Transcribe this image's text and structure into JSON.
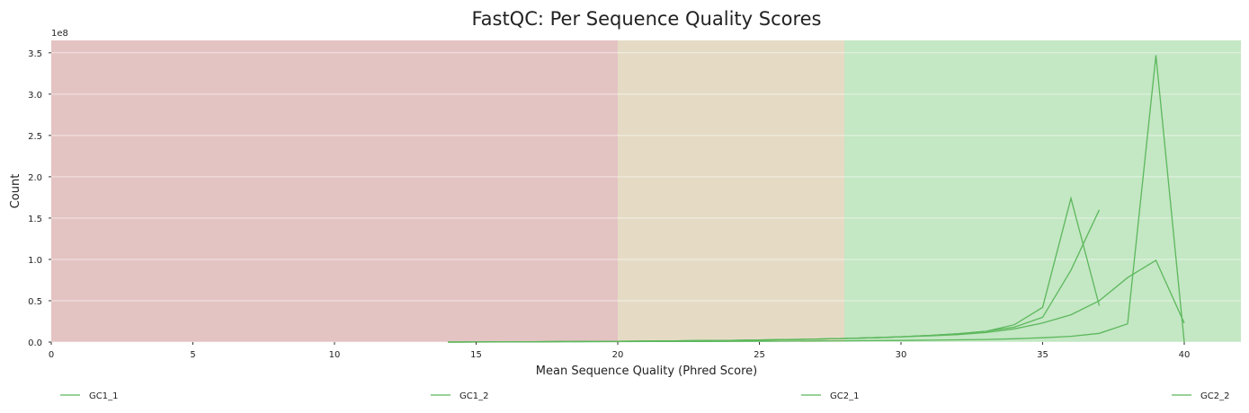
{
  "chart_data": {
    "type": "line",
    "title": "FastQC: Per Sequence Quality Scores",
    "xlabel": "Mean Sequence Quality (Phred Score)",
    "ylabel": "Count",
    "y_multiplier_label": "1e8",
    "xlim": [
      0,
      42
    ],
    "ylim": [
      0,
      365000000.0
    ],
    "x_ticks": [
      0,
      5,
      10,
      15,
      20,
      25,
      30,
      35,
      40
    ],
    "y_ticks": [
      0.0,
      0.5,
      1.0,
      1.5,
      2.0,
      2.5,
      3.0,
      3.5
    ],
    "grid": true,
    "legend_position": "bottom",
    "zones": [
      {
        "from": 0,
        "to": 20,
        "color": "#e4c3c3",
        "meaning": "poor"
      },
      {
        "from": 20,
        "to": 28,
        "color": "#e5dbc5",
        "meaning": "reasonable"
      },
      {
        "from": 28,
        "to": 42,
        "color": "#c4e7c4",
        "meaning": "good"
      }
    ],
    "line_color": "#5cb85c",
    "series": [
      {
        "name": "GC1_1",
        "x": [
          14,
          15,
          16,
          17,
          18,
          19,
          20,
          21,
          22,
          23,
          24,
          25,
          26,
          27,
          28,
          29,
          30,
          31,
          32,
          33,
          34,
          35,
          36,
          37
        ],
        "y": [
          0,
          100000,
          200000,
          400000,
          600000,
          800000,
          1000000,
          1200000,
          1500000,
          1800000,
          2100000,
          2500000,
          3000000,
          3600000,
          4300000,
          5200000,
          6400000,
          8000000,
          10000000,
          13000000,
          21000000,
          42000000,
          174000000,
          44000000
        ]
      },
      {
        "name": "GC1_2",
        "x": [
          14,
          15,
          16,
          17,
          18,
          19,
          20,
          21,
          22,
          23,
          24,
          25,
          26,
          27,
          28,
          29,
          30,
          31,
          32,
          33,
          34,
          35,
          36,
          37
        ],
        "y": [
          0,
          100000,
          200000,
          400000,
          600000,
          800000,
          1000000,
          1200000,
          1500000,
          1800000,
          2100000,
          2500000,
          3000000,
          3600000,
          4300000,
          5200000,
          6400000,
          8000000,
          10000000,
          13000000,
          18000000,
          30000000,
          87000000,
          160000000
        ]
      },
      {
        "name": "GC2_1",
        "x": [
          14,
          15,
          16,
          17,
          18,
          19,
          20,
          21,
          22,
          23,
          24,
          25,
          26,
          27,
          28,
          29,
          30,
          31,
          32,
          33,
          34,
          35,
          36,
          37,
          38,
          39,
          40
        ],
        "y": [
          0,
          100000,
          200000,
          400000,
          600000,
          800000,
          1000000,
          1200000,
          1500000,
          1800000,
          2100000,
          2500000,
          3000000,
          3600000,
          4300000,
          5200000,
          6400000,
          7500000,
          9000000,
          11500000,
          16000000,
          23000000,
          33000000,
          50000000,
          78000000,
          99000000,
          23000000
        ]
      },
      {
        "name": "GC2_2",
        "x": [
          14,
          15,
          16,
          17,
          18,
          19,
          20,
          21,
          22,
          23,
          24,
          25,
          26,
          27,
          28,
          29,
          30,
          31,
          32,
          33,
          34,
          35,
          36,
          37,
          38,
          39,
          40
        ],
        "y": [
          0,
          50000,
          100000,
          200000,
          300000,
          400000,
          500000,
          600000,
          700000,
          800000,
          900000,
          1000000,
          1100000,
          1300000,
          1500000,
          1700000,
          2000000,
          2300000,
          2700000,
          3200000,
          4000000,
          5200000,
          7000000,
          10500000,
          22000000,
          347000000,
          0
        ]
      }
    ]
  }
}
